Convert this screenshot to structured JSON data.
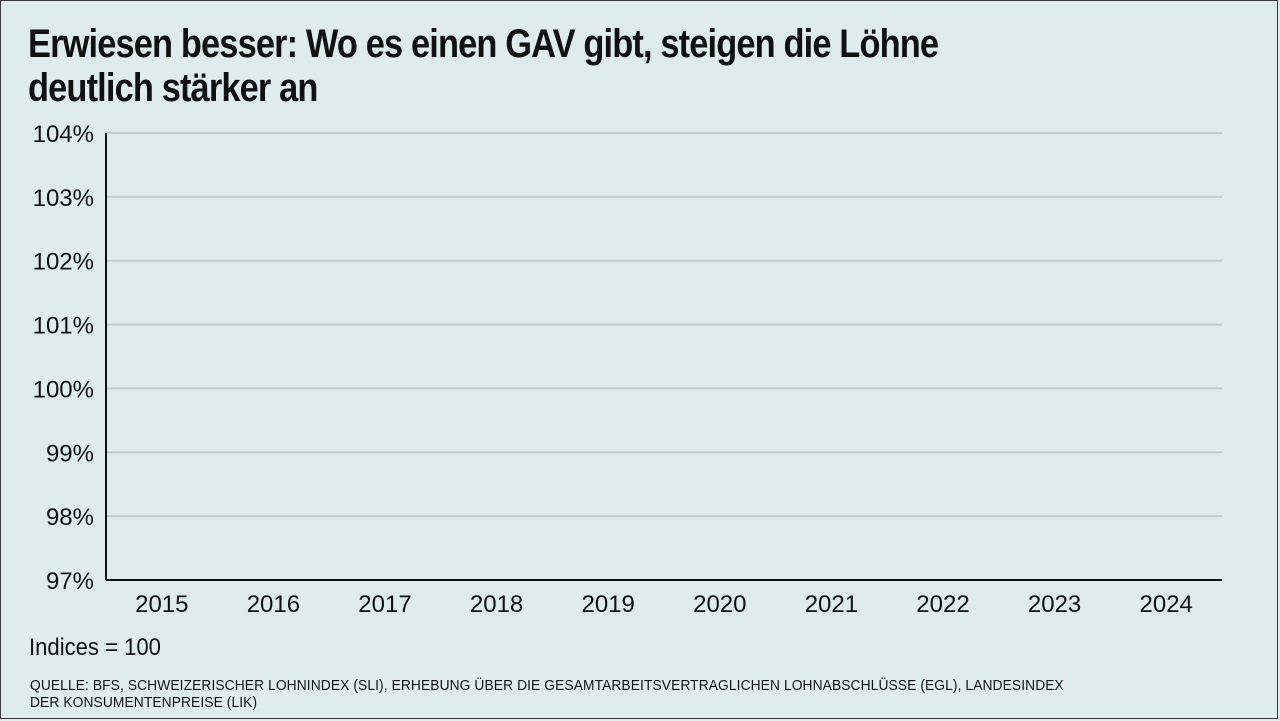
{
  "chart_data": {
    "type": "line",
    "title_lines": [
      "Erwiesen besser: Wo es einen GAV gibt, steigen die Löhne",
      "deutlich stärker an"
    ],
    "categories": [
      "2015",
      "2016",
      "2017",
      "2018",
      "2019",
      "2020",
      "2021",
      "2022",
      "2023",
      "2024"
    ],
    "y_ticks": [
      104,
      103,
      102,
      101,
      100,
      99,
      98,
      97
    ],
    "y_tick_labels": [
      "104%",
      "103%",
      "102%",
      "101%",
      "100%",
      "99%",
      "98%",
      "97%"
    ],
    "ylim": [
      97,
      104
    ],
    "grid": true,
    "series": [],
    "note": "Indices = 100",
    "source_lines": [
      "QUELLE: BFS, SCHWEIZERISCHER LOHNINDEX (SLI), ERHEBUNG ÜBER DIE GESAMTARBEITSVERTRAGLICHEN LOHNABSCHLÜSSE (EGL), LANDESINDEX",
      "DER KONSUMENTENPREISE (LIK)"
    ],
    "colors": {
      "background": "#dfecee",
      "grid": "#c9c9c9",
      "axis": "#111111",
      "text": "#111111"
    }
  }
}
